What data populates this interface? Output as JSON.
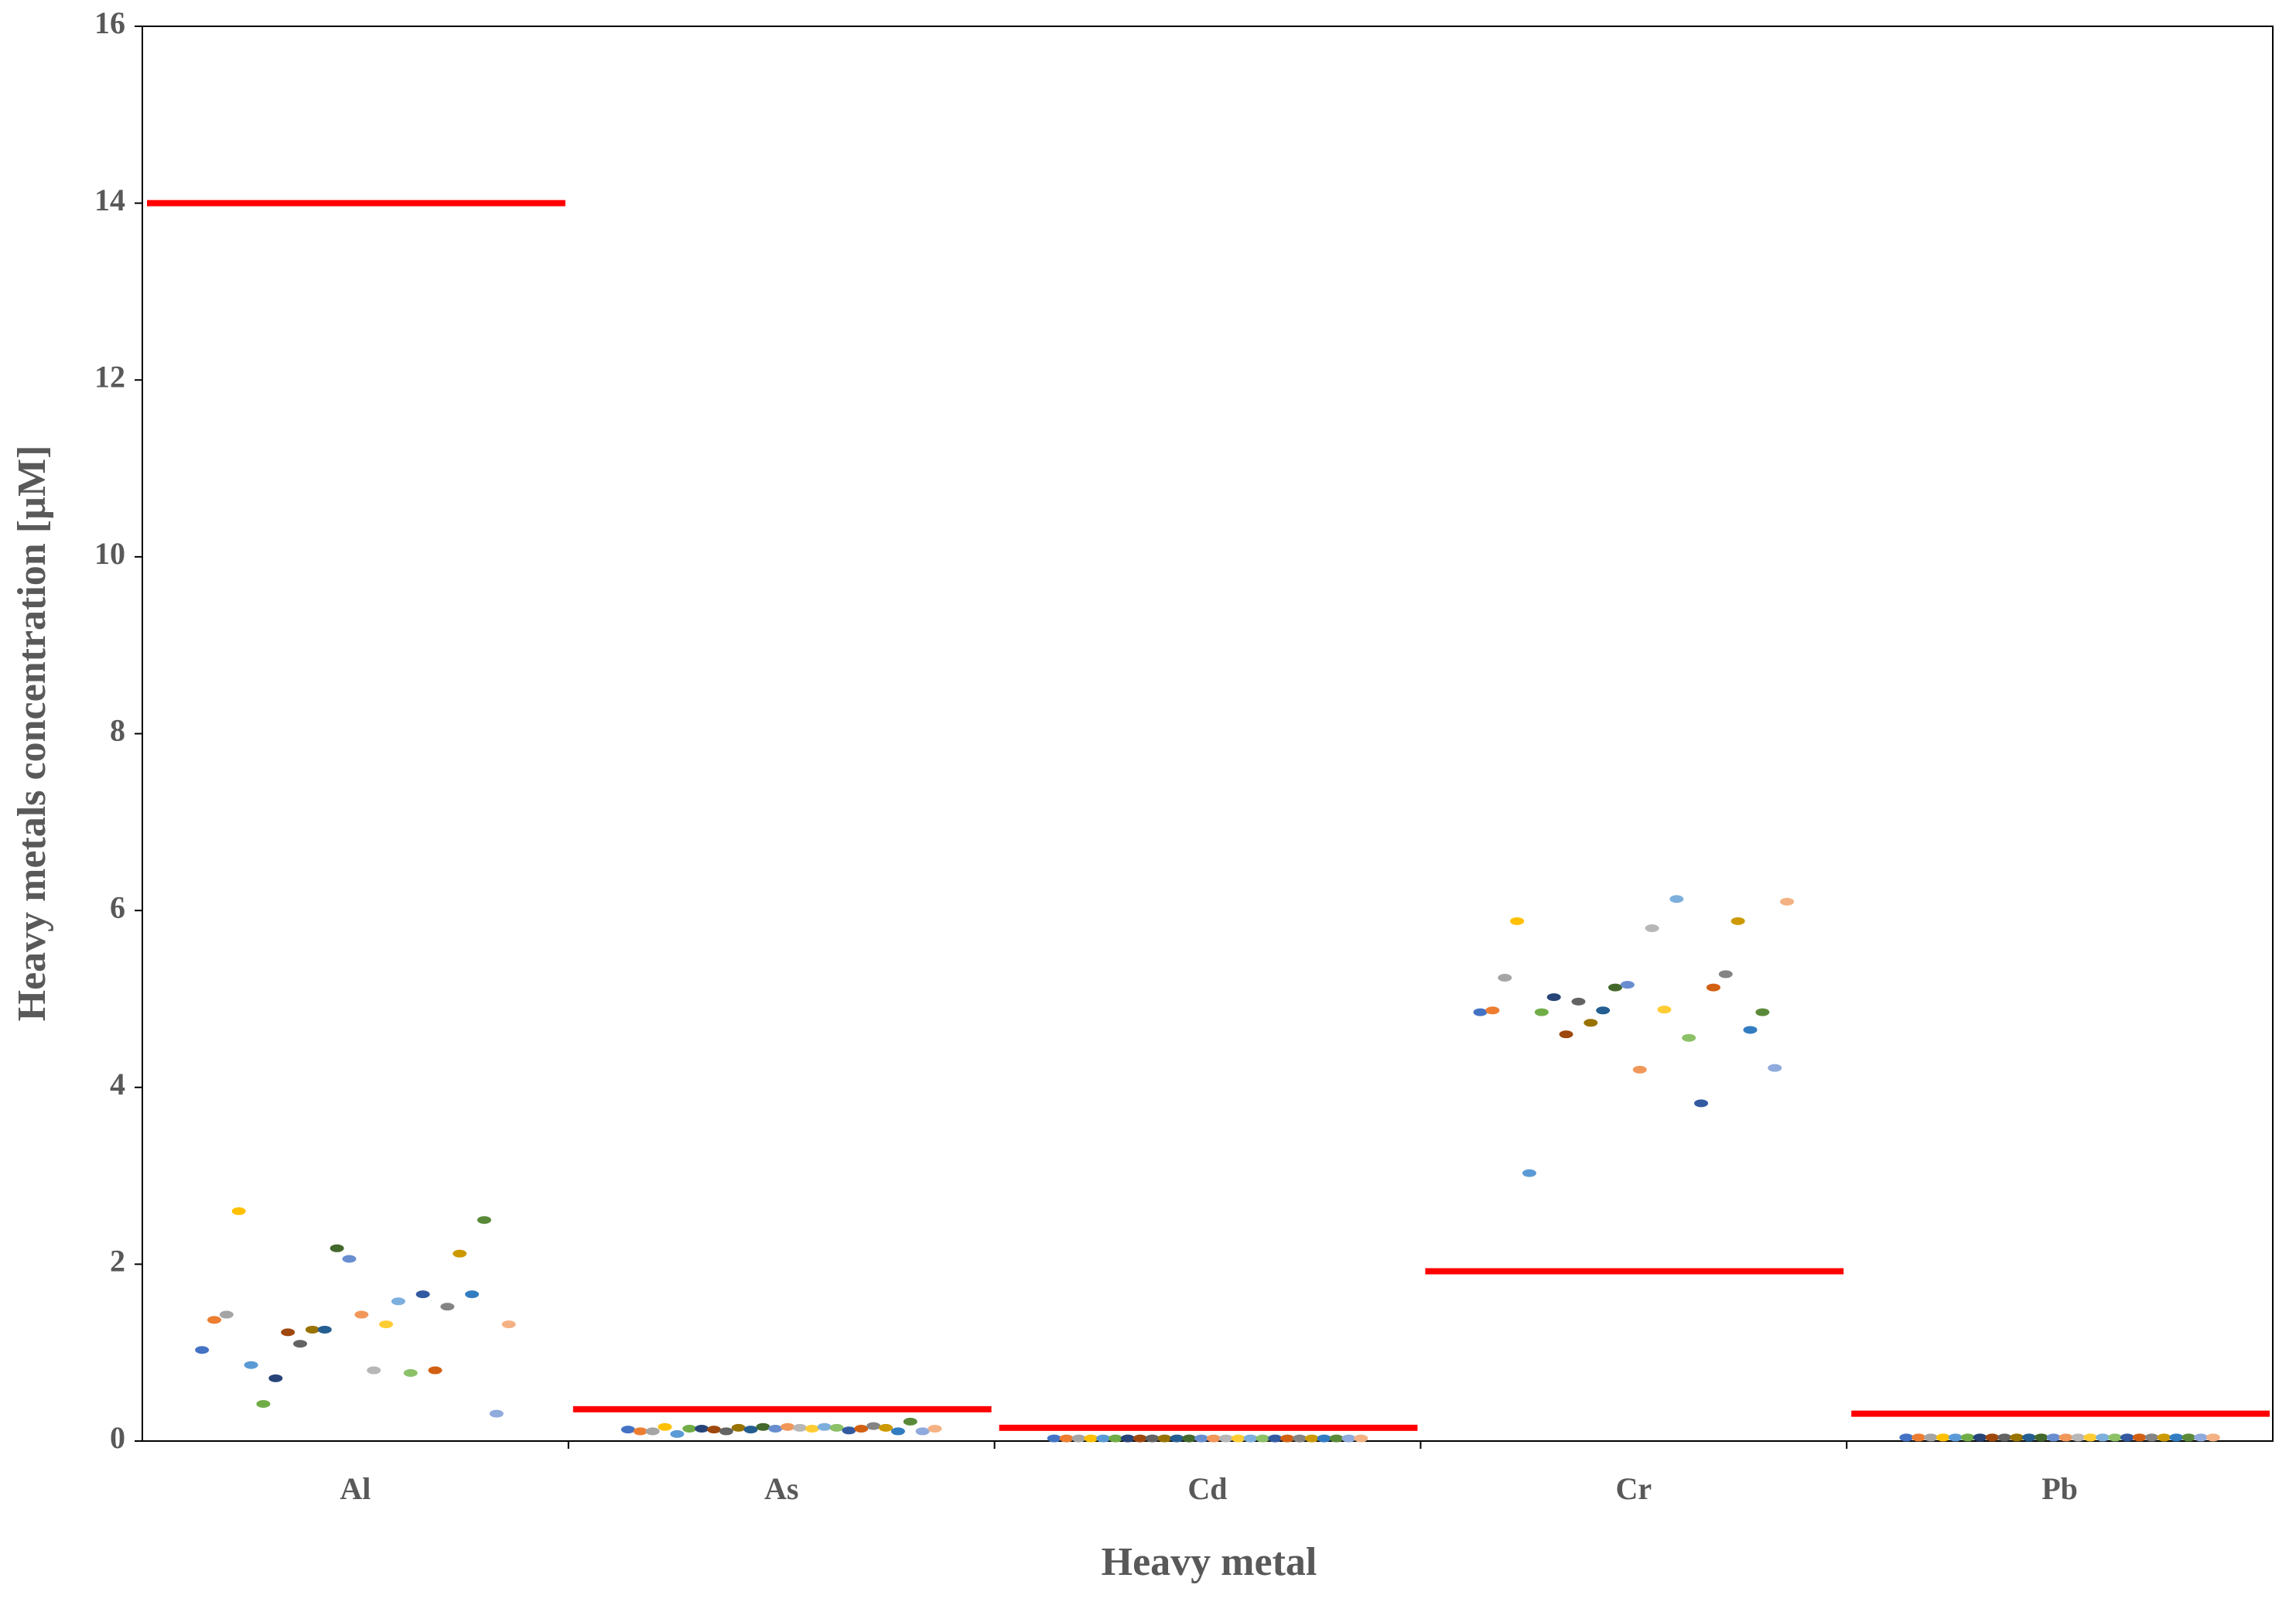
{
  "chart_data": {
    "type": "strip",
    "x_label": "Heavy metal",
    "y_label": "Heavy metals concentration [µM]",
    "categories": [
      "Al",
      "As",
      "Cd",
      "Cr",
      "Pb"
    ],
    "ylim": [
      0,
      16
    ],
    "yticks": [
      0,
      2,
      4,
      6,
      8,
      10,
      12,
      14,
      16
    ],
    "reference_line": {
      "color": "#ff0000",
      "values": [
        14,
        0.36,
        0.15,
        1.92,
        0.31
      ]
    },
    "series": [
      {
        "color": "#4472c4",
        "values": [
          1.03,
          0.13,
          0.03,
          4.85,
          0.04
        ]
      },
      {
        "color": "#ed7d31",
        "values": [
          1.37,
          0.11,
          0.03,
          4.87,
          0.04
        ]
      },
      {
        "color": "#a5a5a5",
        "values": [
          1.43,
          0.11,
          0.03,
          5.24,
          0.04
        ]
      },
      {
        "color": "#ffc000",
        "values": [
          2.6,
          0.16,
          0.03,
          5.88,
          0.04
        ]
      },
      {
        "color": "#5b9bd5",
        "values": [
          0.86,
          0.08,
          0.03,
          3.03,
          0.04
        ]
      },
      {
        "color": "#70ad47",
        "values": [
          0.42,
          0.14,
          0.03,
          4.85,
          0.04
        ]
      },
      {
        "color": "#264478",
        "values": [
          0.71,
          0.14,
          0.03,
          5.02,
          0.04
        ]
      },
      {
        "color": "#9e480e",
        "values": [
          1.23,
          0.13,
          0.03,
          4.6,
          0.04
        ]
      },
      {
        "color": "#636363",
        "values": [
          1.1,
          0.11,
          0.03,
          4.97,
          0.04
        ]
      },
      {
        "color": "#997300",
        "values": [
          1.26,
          0.15,
          0.03,
          4.73,
          0.04
        ]
      },
      {
        "color": "#255e91",
        "values": [
          1.26,
          0.13,
          0.03,
          4.87,
          0.04
        ]
      },
      {
        "color": "#43682b",
        "values": [
          2.18,
          0.16,
          0.03,
          5.13,
          0.04
        ]
      },
      {
        "color": "#698ed0",
        "values": [
          2.06,
          0.14,
          0.03,
          5.16,
          0.04
        ]
      },
      {
        "color": "#f1975a",
        "values": [
          1.43,
          0.16,
          0.03,
          4.2,
          0.04
        ]
      },
      {
        "color": "#b7b7b7",
        "values": [
          0.8,
          0.15,
          0.03,
          5.8,
          0.04
        ]
      },
      {
        "color": "#ffcd33",
        "values": [
          1.32,
          0.14,
          0.03,
          4.88,
          0.04
        ]
      },
      {
        "color": "#7cafdd",
        "values": [
          1.58,
          0.16,
          0.03,
          6.13,
          0.04
        ]
      },
      {
        "color": "#8cc168",
        "values": [
          0.77,
          0.15,
          0.03,
          4.56,
          0.04
        ]
      },
      {
        "color": "#335aa1",
        "values": [
          1.66,
          0.12,
          0.03,
          3.82,
          0.04
        ]
      },
      {
        "color": "#d26012",
        "values": [
          0.8,
          0.14,
          0.03,
          5.13,
          0.04
        ]
      },
      {
        "color": "#848484",
        "values": [
          1.52,
          0.17,
          0.03,
          5.28,
          0.04
        ]
      },
      {
        "color": "#cc9a00",
        "values": [
          2.12,
          0.15,
          0.03,
          5.88,
          0.04
        ]
      },
      {
        "color": "#327dc2",
        "values": [
          1.66,
          0.11,
          0.03,
          4.65,
          0.04
        ]
      },
      {
        "color": "#5a8a39",
        "values": [
          2.5,
          0.22,
          0.03,
          4.85,
          0.04
        ]
      },
      {
        "color": "#8faadc",
        "values": [
          0.31,
          0.11,
          0.03,
          4.22,
          0.04
        ]
      },
      {
        "color": "#f4b183",
        "values": [
          1.32,
          0.14,
          0.03,
          6.1,
          0.04
        ]
      }
    ]
  }
}
